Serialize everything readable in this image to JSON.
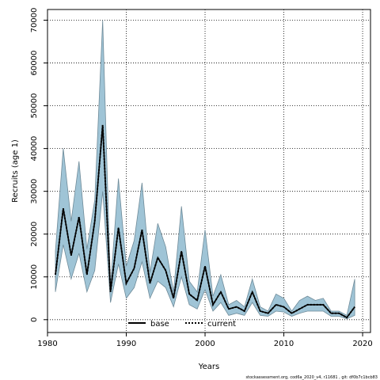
{
  "chart_data": {
    "type": "area",
    "title": "",
    "xlabel": "Years",
    "ylabel": "Recruits (age 1)",
    "xlim": [
      1980,
      2021
    ],
    "ylim": [
      0,
      72000
    ],
    "grid": true,
    "legend_placement": "bottom-center",
    "x_ticks": [
      1980,
      1990,
      2000,
      2010,
      2020
    ],
    "y_ticks": [
      0,
      10000,
      20000,
      30000,
      40000,
      50000,
      60000,
      70000
    ],
    "x_tick_labels": [
      "1980",
      "1990",
      "2000",
      "2010",
      "2020"
    ],
    "y_tick_labels": [
      "0",
      "10000",
      "20000",
      "30000",
      "40000",
      "50000",
      "60000",
      "70000"
    ],
    "x": [
      1981,
      1982,
      1983,
      1984,
      1985,
      1986,
      1987,
      1988,
      1989,
      1990,
      1991,
      1992,
      1993,
      1994,
      1995,
      1996,
      1997,
      1998,
      1999,
      2000,
      2001,
      2002,
      2003,
      2004,
      2005,
      2006,
      2007,
      2008,
      2009,
      2010,
      2011,
      2012,
      2013,
      2014,
      2015,
      2016,
      2017,
      2018,
      2019
    ],
    "series": [
      {
        "name": "base",
        "values": [
          10500,
          26000,
          15000,
          24000,
          10500,
          23000,
          45500,
          6500,
          21500,
          8500,
          12000,
          21000,
          8500,
          14500,
          11500,
          5000,
          16000,
          6000,
          4500,
          12500,
          3500,
          6500,
          2500,
          3000,
          2000,
          6500,
          2000,
          1500,
          3500,
          3000,
          1500,
          2500,
          3500,
          3500,
          3500,
          1500,
          1500,
          500,
          3000
        ]
      },
      {
        "name": "current",
        "values": [
          10500,
          26000,
          15000,
          24000,
          10500,
          23000,
          45500,
          6500,
          21500,
          8500,
          12000,
          21000,
          8500,
          14500,
          11500,
          5000,
          16000,
          6000,
          4500,
          12500,
          3500,
          6500,
          2500,
          3000,
          2000,
          6500,
          2000,
          1500,
          3500,
          3000,
          1500,
          2500,
          3500,
          3500,
          3500,
          1500,
          1500,
          500,
          3000
        ]
      }
    ],
    "confidence_band": {
      "upper": [
        16000,
        40000,
        23000,
        37000,
        16500,
        28000,
        70000,
        8000,
        33000,
        12500,
        18500,
        32000,
        11000,
        22500,
        17000,
        6500,
        26500,
        9000,
        6500,
        21000,
        5500,
        10500,
        3500,
        4500,
        3000,
        9500,
        3000,
        2000,
        6000,
        5000,
        2000,
        4500,
        5500,
        4500,
        5000,
        2000,
        2000,
        1000,
        9500
      ],
      "lower": [
        6500,
        17500,
        9500,
        15500,
        6500,
        11500,
        30000,
        4000,
        13000,
        5000,
        7500,
        13500,
        5000,
        9000,
        7500,
        3000,
        10000,
        3500,
        2500,
        7000,
        2000,
        4000,
        1000,
        1500,
        1000,
        4000,
        1000,
        800,
        2000,
        1800,
        800,
        1500,
        2000,
        2000,
        2000,
        800,
        800,
        200,
        1000
      ]
    },
    "colors": {
      "band_fill": "#9fc4d6",
      "band_edge": "#6f8b99",
      "base_line": "#000000",
      "current_line": "#000000"
    }
  },
  "footer": "stockassessment.org, cod6a_2020_v4, r11681 , git: df0b7c1bcb83"
}
